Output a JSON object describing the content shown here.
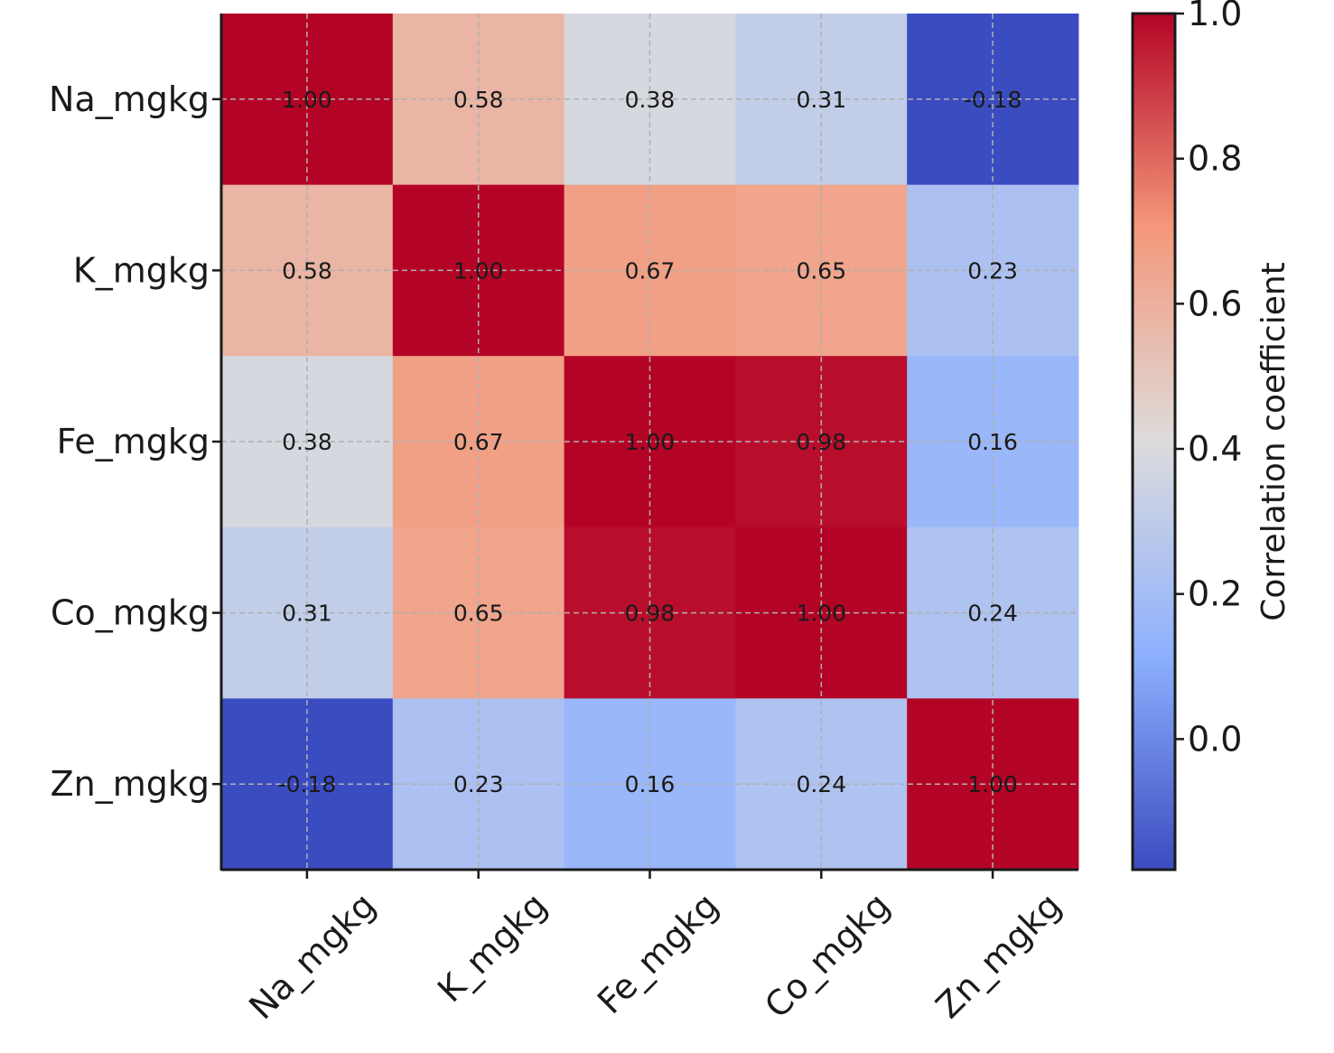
{
  "chart_data": {
    "type": "heatmap",
    "title": "",
    "x_categories": [
      "Na_mgkg",
      "K_mgkg",
      "Fe_mgkg",
      "Co_mgkg",
      "Zn_mgkg"
    ],
    "y_categories": [
      "Na_mgkg",
      "K_mgkg",
      "Fe_mgkg",
      "Co_mgkg",
      "Zn_mgkg"
    ],
    "values": [
      [
        1.0,
        0.58,
        0.38,
        0.31,
        -0.18
      ],
      [
        0.58,
        1.0,
        0.67,
        0.65,
        0.23
      ],
      [
        0.38,
        0.67,
        1.0,
        0.98,
        0.16
      ],
      [
        0.31,
        0.65,
        0.98,
        1.0,
        0.24
      ],
      [
        -0.18,
        0.23,
        0.16,
        0.24,
        1.0
      ]
    ],
    "colormap": "coolwarm",
    "colormap_stops": [
      "#3b4cc0",
      "#8db0fe",
      "#dddcdc",
      "#f4987a",
      "#b40426"
    ],
    "vmin": -0.18,
    "vmax": 1.0,
    "grid": true,
    "colorbar": {
      "label": "Correlation coefficient",
      "ticks": [
        0.0,
        0.2,
        0.4,
        0.6,
        0.8,
        1.0
      ],
      "tick_labels": [
        "0.0",
        "0.2",
        "0.4",
        "0.6",
        "0.8",
        "1.0"
      ]
    }
  }
}
